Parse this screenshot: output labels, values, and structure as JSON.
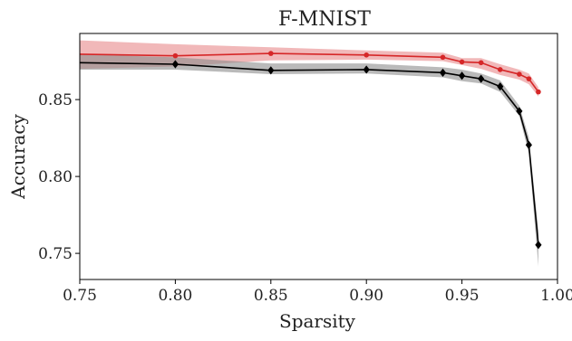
{
  "chart_data": {
    "type": "line",
    "title": "F-MNIST",
    "xlabel": "Sparsity",
    "ylabel": "Accuracy",
    "xlim": [
      0.75,
      1.0
    ],
    "ylim": [
      0.733,
      0.893
    ],
    "xticks": [
      0.75,
      0.8,
      0.85,
      0.9,
      0.95,
      1.0
    ],
    "xtick_labels": [
      "0.75",
      "0.80",
      "0.85",
      "0.90",
      "0.95",
      "1.00"
    ],
    "yticks": [
      0.75,
      0.8,
      0.85
    ],
    "ytick_labels": [
      "0.75",
      "0.80",
      "0.85"
    ],
    "grid": false,
    "legend": null,
    "series": [
      {
        "color": "#d62728",
        "band_color": "#e8888a",
        "marker": "circle",
        "x": [
          0.75,
          0.8,
          0.85,
          0.9,
          0.94,
          0.95,
          0.96,
          0.97,
          0.98,
          0.985,
          0.99
        ],
        "y": [
          0.8795,
          0.8785,
          0.88,
          0.879,
          0.8775,
          0.8745,
          0.874,
          0.8695,
          0.8665,
          0.8635,
          0.855
        ],
        "lower": [
          0.87,
          0.8715,
          0.8755,
          0.876,
          0.875,
          0.8725,
          0.87,
          0.866,
          0.863,
          0.86,
          0.852
        ],
        "upper": [
          0.8885,
          0.886,
          0.884,
          0.882,
          0.8805,
          0.877,
          0.877,
          0.873,
          0.8695,
          0.867,
          0.858
        ]
      },
      {
        "color": "#000000",
        "band_color": "#8c8c8c",
        "marker": "diamond",
        "x": [
          0.75,
          0.8,
          0.85,
          0.9,
          0.94,
          0.95,
          0.96,
          0.97,
          0.98,
          0.985,
          0.99
        ],
        "y": [
          0.874,
          0.873,
          0.869,
          0.8695,
          0.8675,
          0.8655,
          0.8635,
          0.8585,
          0.8425,
          0.8205,
          0.7555
        ],
        "lower": [
          0.8695,
          0.8695,
          0.8665,
          0.867,
          0.8645,
          0.862,
          0.8605,
          0.855,
          0.8395,
          0.815,
          0.7415
        ],
        "upper": [
          0.8795,
          0.8775,
          0.8735,
          0.8735,
          0.871,
          0.8695,
          0.867,
          0.8625,
          0.846,
          0.8255,
          0.765
        ]
      }
    ]
  }
}
